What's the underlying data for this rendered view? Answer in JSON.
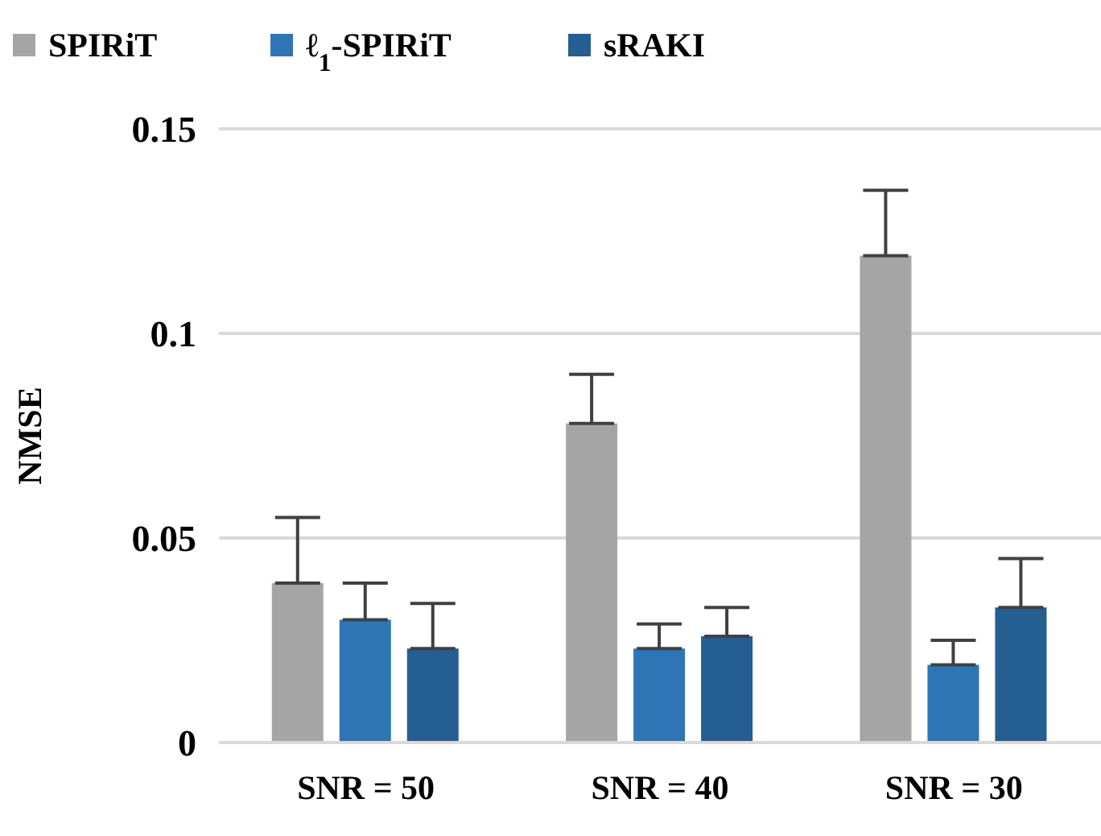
{
  "chart_data": {
    "type": "bar",
    "ylabel": "NMSE",
    "categories": [
      "SNR = 50",
      "SNR = 40",
      "SNR = 30"
    ],
    "series": [
      {
        "name": "SPIRiT",
        "color": "#a5a5a5",
        "values": [
          0.039,
          0.078,
          0.119
        ],
        "errors": [
          [
            0.039,
            0.055
          ],
          [
            0.078,
            0.09
          ],
          [
            0.119,
            0.135
          ]
        ]
      },
      {
        "name": "ℓ$_{1}$-SPIRiT",
        "color": "#2e75b6",
        "values": [
          0.03,
          0.023,
          0.019
        ],
        "errors": [
          [
            0.03,
            0.039
          ],
          [
            0.023,
            0.029
          ],
          [
            0.019,
            0.025
          ]
        ]
      },
      {
        "name": "sRAKI",
        "color": "#255e91",
        "values": [
          0.023,
          0.026,
          0.033
        ],
        "errors": [
          [
            0.023,
            0.034
          ],
          [
            0.026,
            0.033
          ],
          [
            0.033,
            0.045
          ]
        ]
      }
    ],
    "ylim": [
      0,
      0.15
    ],
    "yticks": [
      0,
      0.05,
      0.1,
      0.15
    ],
    "grid": "y",
    "legend": "top"
  }
}
